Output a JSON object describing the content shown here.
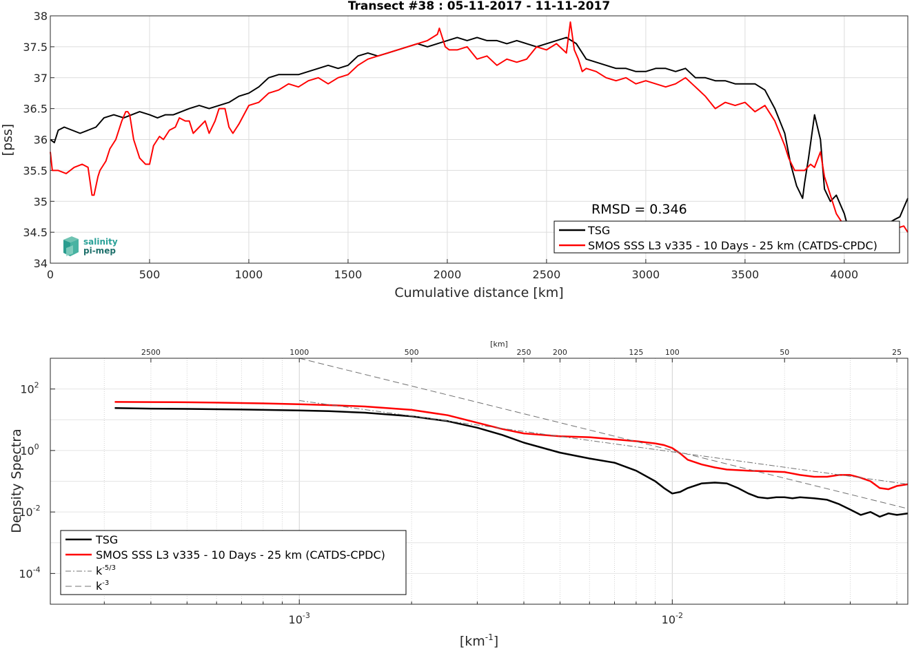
{
  "colors": {
    "tsg": "#000000",
    "smos": "#ff0000",
    "ref": "#707070",
    "grid": "#dcdcdc",
    "logo": "#2aa198"
  },
  "logo": {
    "line1": "salinity",
    "line2": "pi-mep"
  },
  "chart_data": [
    {
      "type": "line",
      "title": "Transect #38 : 05-11-2017 - 11-11-2017",
      "xlabel": "Cumulative distance [km]",
      "ylabel": "[pss]",
      "xlim": [
        0,
        4320
      ],
      "ylim": [
        34,
        38
      ],
      "xticks": [
        0,
        500,
        1000,
        1500,
        2000,
        2500,
        3000,
        3500,
        4000
      ],
      "yticks": [
        34,
        34.5,
        35,
        35.5,
        36,
        36.5,
        37,
        37.5,
        38
      ],
      "annotation": "RMSD = 0.346",
      "legend_position": "bottom-right",
      "grid": true,
      "series": [
        {
          "name": "TSG",
          "color": "#000000",
          "x": [
            0,
            20,
            40,
            70,
            110,
            150,
            190,
            230,
            270,
            320,
            370,
            410,
            450,
            500,
            540,
            580,
            620,
            660,
            700,
            750,
            800,
            850,
            900,
            950,
            1000,
            1050,
            1100,
            1150,
            1200,
            1250,
            1300,
            1350,
            1400,
            1450,
            1500,
            1550,
            1600,
            1650,
            1700,
            1750,
            1800,
            1850,
            1900,
            1950,
            2000,
            2050,
            2100,
            2150,
            2200,
            2250,
            2300,
            2350,
            2400,
            2450,
            2500,
            2550,
            2600,
            2650,
            2700,
            2750,
            2800,
            2850,
            2900,
            2950,
            3000,
            3050,
            3100,
            3150,
            3200,
            3250,
            3300,
            3350,
            3400,
            3450,
            3500,
            3550,
            3600,
            3650,
            3700,
            3730,
            3760,
            3790,
            3800,
            3820,
            3850,
            3880,
            3900,
            3930,
            3960,
            4000,
            4050,
            4100,
            4150,
            4200,
            4250,
            4280,
            4300,
            4320
          ],
          "y": [
            36.0,
            35.95,
            36.15,
            36.2,
            36.15,
            36.1,
            36.15,
            36.2,
            36.35,
            36.4,
            36.35,
            36.4,
            36.45,
            36.4,
            36.35,
            36.4,
            36.4,
            36.45,
            36.5,
            36.55,
            36.5,
            36.55,
            36.6,
            36.7,
            36.75,
            36.85,
            37.0,
            37.05,
            37.05,
            37.05,
            37.1,
            37.15,
            37.2,
            37.15,
            37.2,
            37.35,
            37.4,
            37.35,
            37.4,
            37.45,
            37.5,
            37.55,
            37.5,
            37.55,
            37.6,
            37.65,
            37.6,
            37.65,
            37.6,
            37.6,
            37.55,
            37.6,
            37.55,
            37.5,
            37.55,
            37.6,
            37.65,
            37.55,
            37.3,
            37.25,
            37.2,
            37.15,
            37.15,
            37.1,
            37.1,
            37.15,
            37.15,
            37.1,
            37.15,
            37.0,
            37.0,
            36.95,
            36.95,
            36.9,
            36.9,
            36.9,
            36.8,
            36.5,
            36.1,
            35.6,
            35.25,
            35.05,
            35.3,
            35.7,
            36.4,
            36.0,
            35.2,
            35.0,
            35.1,
            34.8,
            34.2,
            34.3,
            34.4,
            34.6,
            34.7,
            34.75,
            34.9,
            35.05
          ]
        },
        {
          "name": "SMOS SSS L3 v335 - 10 Days - 25 km (CATDS-CPDC)",
          "color": "#ff0000",
          "x": [
            0,
            10,
            40,
            80,
            120,
            160,
            190,
            210,
            220,
            240,
            250,
            280,
            300,
            330,
            360,
            380,
            390,
            400,
            420,
            450,
            480,
            500,
            520,
            550,
            570,
            600,
            630,
            650,
            680,
            700,
            720,
            750,
            780,
            800,
            830,
            850,
            880,
            900,
            920,
            950,
            1000,
            1050,
            1100,
            1150,
            1200,
            1250,
            1300,
            1350,
            1400,
            1450,
            1500,
            1550,
            1600,
            1650,
            1700,
            1750,
            1800,
            1850,
            1900,
            1950,
            1960,
            1990,
            2010,
            2050,
            2100,
            2150,
            2200,
            2250,
            2300,
            2350,
            2400,
            2450,
            2500,
            2550,
            2600,
            2620,
            2640,
            2660,
            2680,
            2700,
            2750,
            2800,
            2850,
            2900,
            2950,
            3000,
            3050,
            3100,
            3150,
            3200,
            3250,
            3300,
            3350,
            3400,
            3450,
            3500,
            3550,
            3600,
            3650,
            3700,
            3720,
            3750,
            3800,
            3830,
            3850,
            3880,
            3900,
            3930,
            3960,
            4000,
            4020,
            4050,
            4100,
            4150,
            4200,
            4250,
            4300,
            4320
          ],
          "y": [
            35.8,
            35.5,
            35.5,
            35.45,
            35.55,
            35.6,
            35.55,
            35.1,
            35.1,
            35.4,
            35.5,
            35.65,
            35.85,
            36.0,
            36.3,
            36.45,
            36.45,
            36.4,
            36.0,
            35.7,
            35.6,
            35.6,
            35.9,
            36.05,
            36.0,
            36.15,
            36.2,
            36.35,
            36.3,
            36.3,
            36.1,
            36.2,
            36.3,
            36.1,
            36.3,
            36.5,
            36.5,
            36.2,
            36.1,
            36.25,
            36.55,
            36.6,
            36.75,
            36.8,
            36.9,
            36.85,
            36.95,
            37.0,
            36.9,
            37.0,
            37.05,
            37.2,
            37.3,
            37.35,
            37.4,
            37.45,
            37.5,
            37.55,
            37.6,
            37.7,
            37.8,
            37.5,
            37.45,
            37.45,
            37.5,
            37.3,
            37.35,
            37.2,
            37.3,
            37.25,
            37.3,
            37.5,
            37.45,
            37.55,
            37.4,
            37.9,
            37.45,
            37.3,
            37.1,
            37.15,
            37.1,
            37.0,
            36.95,
            37.0,
            36.9,
            36.95,
            36.9,
            36.85,
            36.9,
            37.0,
            36.85,
            36.7,
            36.5,
            36.6,
            36.55,
            36.6,
            36.45,
            36.55,
            36.3,
            35.9,
            35.7,
            35.5,
            35.5,
            35.6,
            35.55,
            35.8,
            35.4,
            35.1,
            34.8,
            34.6,
            34.4,
            34.3,
            34.25,
            34.4,
            34.5,
            34.55,
            34.6,
            34.5
          ]
        }
      ]
    },
    {
      "type": "line",
      "ylabel": "Density Spectra",
      "xlabel_base": "[km",
      "xlabel_exp": "-1",
      "xlabel_close": "]",
      "xscale": "log",
      "yscale": "log",
      "xlim": [
        0.000215,
        0.0428
      ],
      "ylim": [
        1e-05,
        1000
      ],
      "xticks_major": [
        {
          "v": 0.001,
          "base": "10",
          "exp": "-3"
        },
        {
          "v": 0.01,
          "base": "10",
          "exp": "-2"
        }
      ],
      "yticks": [
        {
          "v": 100,
          "base": "10",
          "exp": "2"
        },
        {
          "v": 1,
          "base": "10",
          "exp": "0"
        },
        {
          "v": 0.01,
          "base": "10",
          "exp": "-2"
        },
        {
          "v": 0.0001,
          "base": "10",
          "exp": "-4"
        }
      ],
      "top_axis_label": "[km]",
      "top_ticks": [
        {
          "km": 2500,
          "label": "2500"
        },
        {
          "km": 1000,
          "label": "1000"
        },
        {
          "km": 500,
          "label": "500"
        },
        {
          "km": 250,
          "label": "250"
        },
        {
          "km": 200,
          "label": "200"
        },
        {
          "km": 125,
          "label": "125"
        },
        {
          "km": 100,
          "label": "100"
        },
        {
          "km": 50,
          "label": "50"
        },
        {
          "km": 25,
          "label": "25"
        }
      ],
      "legend_position": "bottom-left",
      "grid": true,
      "series": [
        {
          "name": "TSG",
          "color": "#000000",
          "dash": "",
          "x": [
            0.00032,
            0.0004,
            0.0005,
            0.0006,
            0.0007,
            0.0008,
            0.001,
            0.0012,
            0.0015,
            0.002,
            0.0025,
            0.003,
            0.0035,
            0.004,
            0.005,
            0.006,
            0.007,
            0.008,
            0.009,
            0.0095,
            0.01,
            0.0105,
            0.011,
            0.012,
            0.013,
            0.014,
            0.015,
            0.016,
            0.017,
            0.018,
            0.019,
            0.02,
            0.021,
            0.022,
            0.024,
            0.026,
            0.028,
            0.03,
            0.032,
            0.034,
            0.036,
            0.038,
            0.04,
            0.0428
          ],
          "y": [
            24,
            23,
            22.5,
            22,
            21.5,
            21,
            20,
            19,
            17,
            13,
            9,
            5.5,
            3.2,
            1.8,
            0.85,
            0.55,
            0.4,
            0.22,
            0.1,
            0.06,
            0.04,
            0.045,
            0.06,
            0.085,
            0.09,
            0.085,
            0.06,
            0.04,
            0.03,
            0.028,
            0.03,
            0.03,
            0.028,
            0.03,
            0.028,
            0.025,
            0.018,
            0.012,
            0.008,
            0.01,
            0.007,
            0.009,
            0.008,
            0.009
          ]
        },
        {
          "name": "SMOS SSS L3 v335 - 10 Days - 25 km (CATDS-CPDC)",
          "color": "#ff0000",
          "dash": "",
          "x": [
            0.00032,
            0.0004,
            0.0005,
            0.0006,
            0.0007,
            0.0008,
            0.001,
            0.0012,
            0.0015,
            0.002,
            0.0025,
            0.003,
            0.0035,
            0.004,
            0.005,
            0.006,
            0.007,
            0.008,
            0.009,
            0.0095,
            0.01,
            0.0105,
            0.011,
            0.012,
            0.013,
            0.014,
            0.015,
            0.016,
            0.018,
            0.02,
            0.022,
            0.024,
            0.026,
            0.028,
            0.03,
            0.032,
            0.034,
            0.036,
            0.038,
            0.04,
            0.0428
          ],
          "y": [
            38,
            37.5,
            37,
            36,
            35,
            34,
            32,
            30,
            27,
            21,
            14,
            8,
            5,
            3.6,
            2.9,
            2.7,
            2.3,
            2.0,
            1.7,
            1.5,
            1.2,
            0.8,
            0.5,
            0.35,
            0.28,
            0.24,
            0.23,
            0.22,
            0.21,
            0.2,
            0.16,
            0.14,
            0.14,
            0.16,
            0.16,
            0.13,
            0.1,
            0.06,
            0.055,
            0.07,
            0.08
          ]
        },
        {
          "name": "k^-5/3",
          "color": "#707070",
          "dash": "8 3 2 3",
          "x": [
            0.001,
            0.0428
          ],
          "y": [
            42,
            0.08
          ]
        },
        {
          "name": "k^-3",
          "color": "#707070",
          "dash": "9 5",
          "x": [
            0.001,
            0.0428
          ],
          "y": [
            1000,
            0.0128
          ]
        }
      ]
    }
  ],
  "legend_top": [
    {
      "label": "TSG",
      "color": "#000000",
      "sup": ""
    },
    {
      "label": "SMOS SSS L3 v335 - 10 Days - 25 km (CATDS-CPDC)",
      "color": "#ff0000",
      "sup": ""
    }
  ],
  "legend_bottom": [
    {
      "label": "TSG",
      "base": "TSG",
      "sup": ""
    },
    {
      "label": "SMOS SSS L3 v335 - 10 Days - 25 km (CATDS-CPDC)",
      "base": "SMOS SSS L3 v335 - 10 Days - 25 km (CATDS-CPDC)",
      "sup": ""
    },
    {
      "label": "k^-5/3",
      "base": "k",
      "sup": "-5/3"
    },
    {
      "label": "k^-3",
      "base": "k",
      "sup": "-3"
    }
  ]
}
